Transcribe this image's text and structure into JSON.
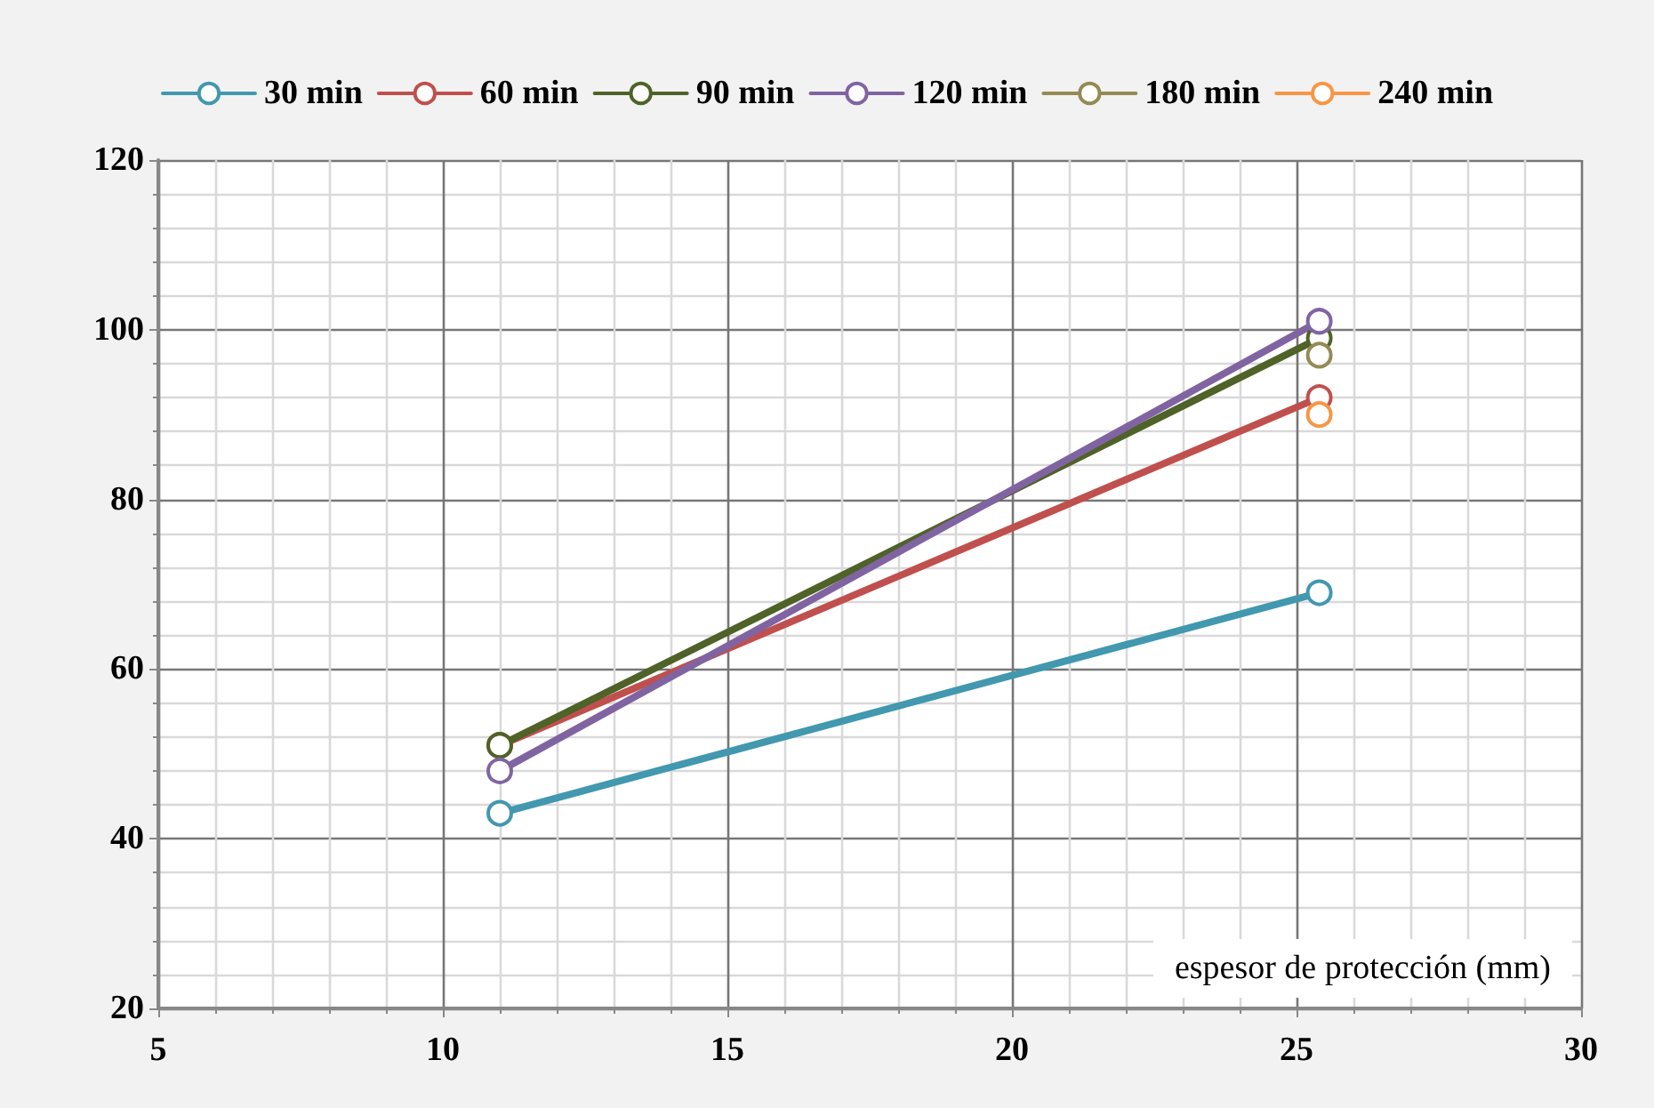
{
  "chart_data": {
    "type": "line",
    "xlabel": "espesor de protección (mm)",
    "x": [
      11,
      25.4
    ],
    "series": [
      {
        "name": "30 min",
        "color": "#4198af",
        "values": [
          43,
          69
        ]
      },
      {
        "name": "60 min",
        "color": "#c0504d",
        "values": [
          51,
          92
        ]
      },
      {
        "name": "90 min",
        "color": "#4f6228",
        "values": [
          51,
          99
        ]
      },
      {
        "name": "120 min",
        "color": "#8064a2",
        "values": [
          48,
          101
        ]
      },
      {
        "name": "180 min",
        "color": "#948a54",
        "values": [
          null,
          97
        ]
      },
      {
        "name": "240 min",
        "color": "#f79646",
        "values": [
          null,
          90
        ]
      }
    ],
    "xlim": [
      5,
      30
    ],
    "xticks": [
      5,
      10,
      15,
      20,
      25,
      30
    ],
    "ylim": [
      20,
      120
    ],
    "yticks": [
      20,
      40,
      60,
      80,
      100,
      120
    ],
    "grid": true,
    "legend": "top",
    "marker": "circle",
    "line_style": "solid"
  }
}
